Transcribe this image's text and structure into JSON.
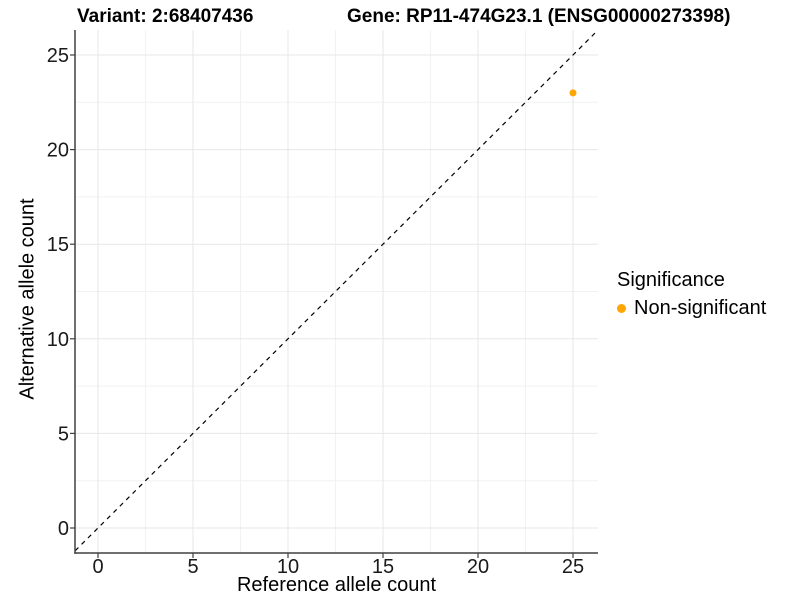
{
  "chart_data": {
    "type": "scatter",
    "title_variant": "Variant: 2:68407436",
    "title_gene": "Gene: RP11-474G23.1 (ENSG00000273398)",
    "xlabel": "Reference allele count",
    "ylabel": "Alternative allele count",
    "x_ticks": [
      0,
      5,
      10,
      15,
      20,
      25
    ],
    "y_ticks": [
      0,
      5,
      10,
      15,
      20,
      25
    ],
    "x_minor_ticks": [
      2.5,
      7.5,
      12.5,
      17.5,
      22.5
    ],
    "y_minor_ticks": [
      2.5,
      7.5,
      12.5,
      17.5,
      22.5
    ],
    "xlim": [
      -1.2,
      26.3
    ],
    "ylim": [
      -1.3,
      26.3
    ],
    "grid": "major+minor",
    "points": [
      {
        "x": 25,
        "y": 23,
        "series": "Non-significant",
        "color": "#FFA500"
      }
    ],
    "identity_line": {
      "equation": "y = x",
      "style": "dashed",
      "color": "#000000"
    },
    "legend": {
      "title": "Significance",
      "position": "right",
      "entries": [
        {
          "label": "Non-significant",
          "color": "#FFA500"
        }
      ]
    },
    "colors": {
      "point": "#FFA500",
      "axis": "#404040",
      "tick_text": "#1a1a1a",
      "grid_major": "#e7e7e7",
      "grid_minor": "#f2f2f2"
    }
  }
}
